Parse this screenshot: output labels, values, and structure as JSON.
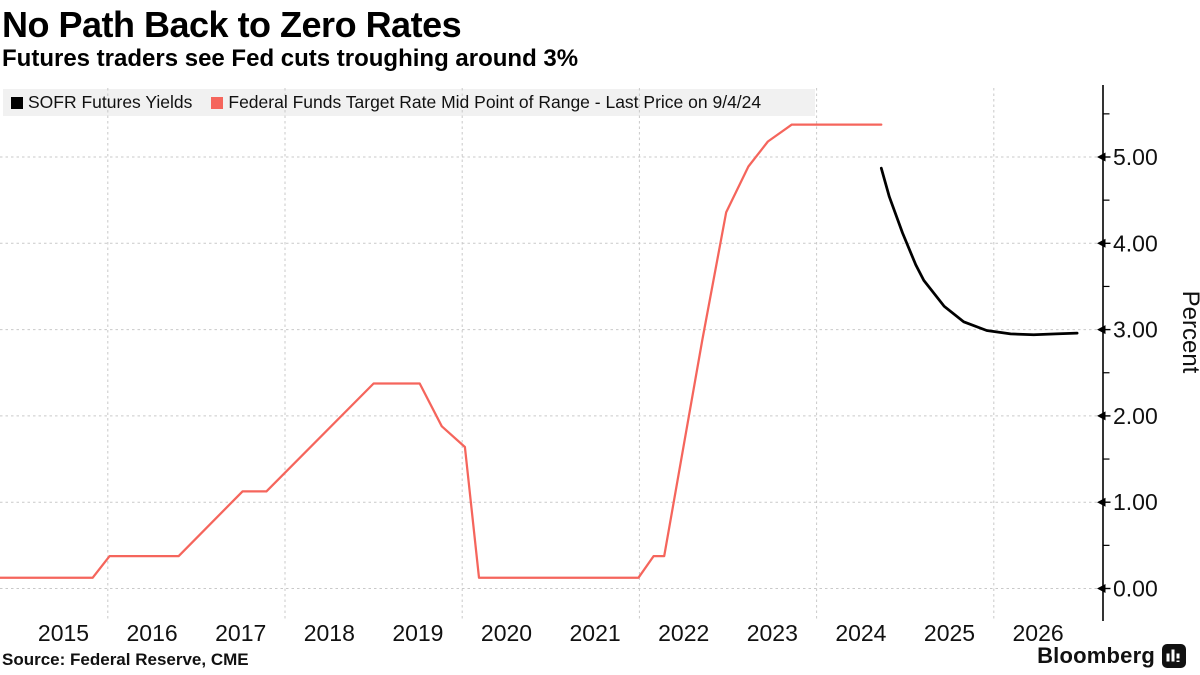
{
  "header": {
    "title": "No Path Back to Zero Rates",
    "subtitle": "Futures traders see Fed cuts troughing around 3%"
  },
  "legend": {
    "items": [
      {
        "label": "SOFR Futures Yields",
        "color": "#000000"
      },
      {
        "label": "Federal Funds Target Rate Mid Point of Range - Last Price on 9/4/24",
        "color": "#f5655c"
      }
    ],
    "background": "#f1f1f1"
  },
  "footer": {
    "source": "Source: Federal Reserve, CME",
    "brand": "Bloomberg"
  },
  "colors": {
    "sofr_line": "#000000",
    "fed_funds_line": "#f5655c",
    "gridline": "#c9c9c9",
    "axis": "#000000",
    "tick_label": "#111111"
  },
  "chart_data": {
    "type": "line",
    "title": "No Path Back to Zero Rates",
    "subtitle": "Futures traders see Fed cuts troughing around 3%",
    "xlabel": "",
    "ylabel": "Percent",
    "source": "Source: Federal Reserve, CME",
    "grid": "dashed, horizontal at every 1.00, vertical at even years",
    "legend_position": "top-left",
    "xlim": [
      2014.78,
      2027.2
    ],
    "ylim": [
      0,
      5.83
    ],
    "x_ticks": [
      {
        "value": 2015.5,
        "label": "2015"
      },
      {
        "value": 2016.5,
        "label": "2016"
      },
      {
        "value": 2017.5,
        "label": "2017"
      },
      {
        "value": 2018.5,
        "label": "2018"
      },
      {
        "value": 2019.5,
        "label": "2019"
      },
      {
        "value": 2020.5,
        "label": "2020"
      },
      {
        "value": 2021.5,
        "label": "2021"
      },
      {
        "value": 2022.5,
        "label": "2022"
      },
      {
        "value": 2023.5,
        "label": "2023"
      },
      {
        "value": 2024.5,
        "label": "2024"
      },
      {
        "value": 2025.5,
        "label": "2025"
      },
      {
        "value": 2026.5,
        "label": "2026"
      }
    ],
    "x_gridline_years": [
      2016,
      2018,
      2020,
      2022,
      2024,
      2026
    ],
    "y_ticks": [
      {
        "value": 0,
        "label": "0.00"
      },
      {
        "value": 1,
        "label": "1.00"
      },
      {
        "value": 2,
        "label": "2.00"
      },
      {
        "value": 3,
        "label": "3.00"
      },
      {
        "value": 4,
        "label": "4.00"
      },
      {
        "value": 5,
        "label": "5.00"
      }
    ],
    "y_minor_ticks": [
      0.5,
      1.5,
      2.5,
      3.5,
      4.5,
      5.5
    ],
    "series": [
      {
        "name": "Federal Funds Target Rate Mid Point of Range - Last Price on 9/4/24",
        "color": "#f5655c",
        "stroke_width": 2.25,
        "points": [
          [
            2014.78,
            0.125
          ],
          [
            2015.83,
            0.125
          ],
          [
            2016.02,
            0.375
          ],
          [
            2016.8,
            0.375
          ],
          [
            2017.52,
            1.125
          ],
          [
            2017.79,
            1.125
          ],
          [
            2019.0,
            2.375
          ],
          [
            2019.52,
            2.375
          ],
          [
            2019.77,
            1.88
          ],
          [
            2020.03,
            1.64
          ],
          [
            2020.19,
            0.125
          ],
          [
            2021.99,
            0.125
          ],
          [
            2022.16,
            0.375
          ],
          [
            2022.28,
            0.375
          ],
          [
            2022.71,
            2.88
          ],
          [
            2022.98,
            4.36
          ],
          [
            2023.23,
            4.89
          ],
          [
            2023.45,
            5.18
          ],
          [
            2023.72,
            5.375
          ],
          [
            2024.73,
            5.375
          ]
        ]
      },
      {
        "name": "SOFR Futures Yields",
        "color": "#000000",
        "stroke_width": 2.75,
        "points": [
          [
            2024.73,
            4.87
          ],
          [
            2024.82,
            4.54
          ],
          [
            2024.97,
            4.12
          ],
          [
            2025.12,
            3.75
          ],
          [
            2025.21,
            3.57
          ],
          [
            2025.44,
            3.27
          ],
          [
            2025.66,
            3.09
          ],
          [
            2025.92,
            2.99
          ],
          [
            2026.19,
            2.95
          ],
          [
            2026.45,
            2.94
          ],
          [
            2026.7,
            2.95
          ],
          [
            2026.94,
            2.96
          ]
        ]
      }
    ]
  }
}
